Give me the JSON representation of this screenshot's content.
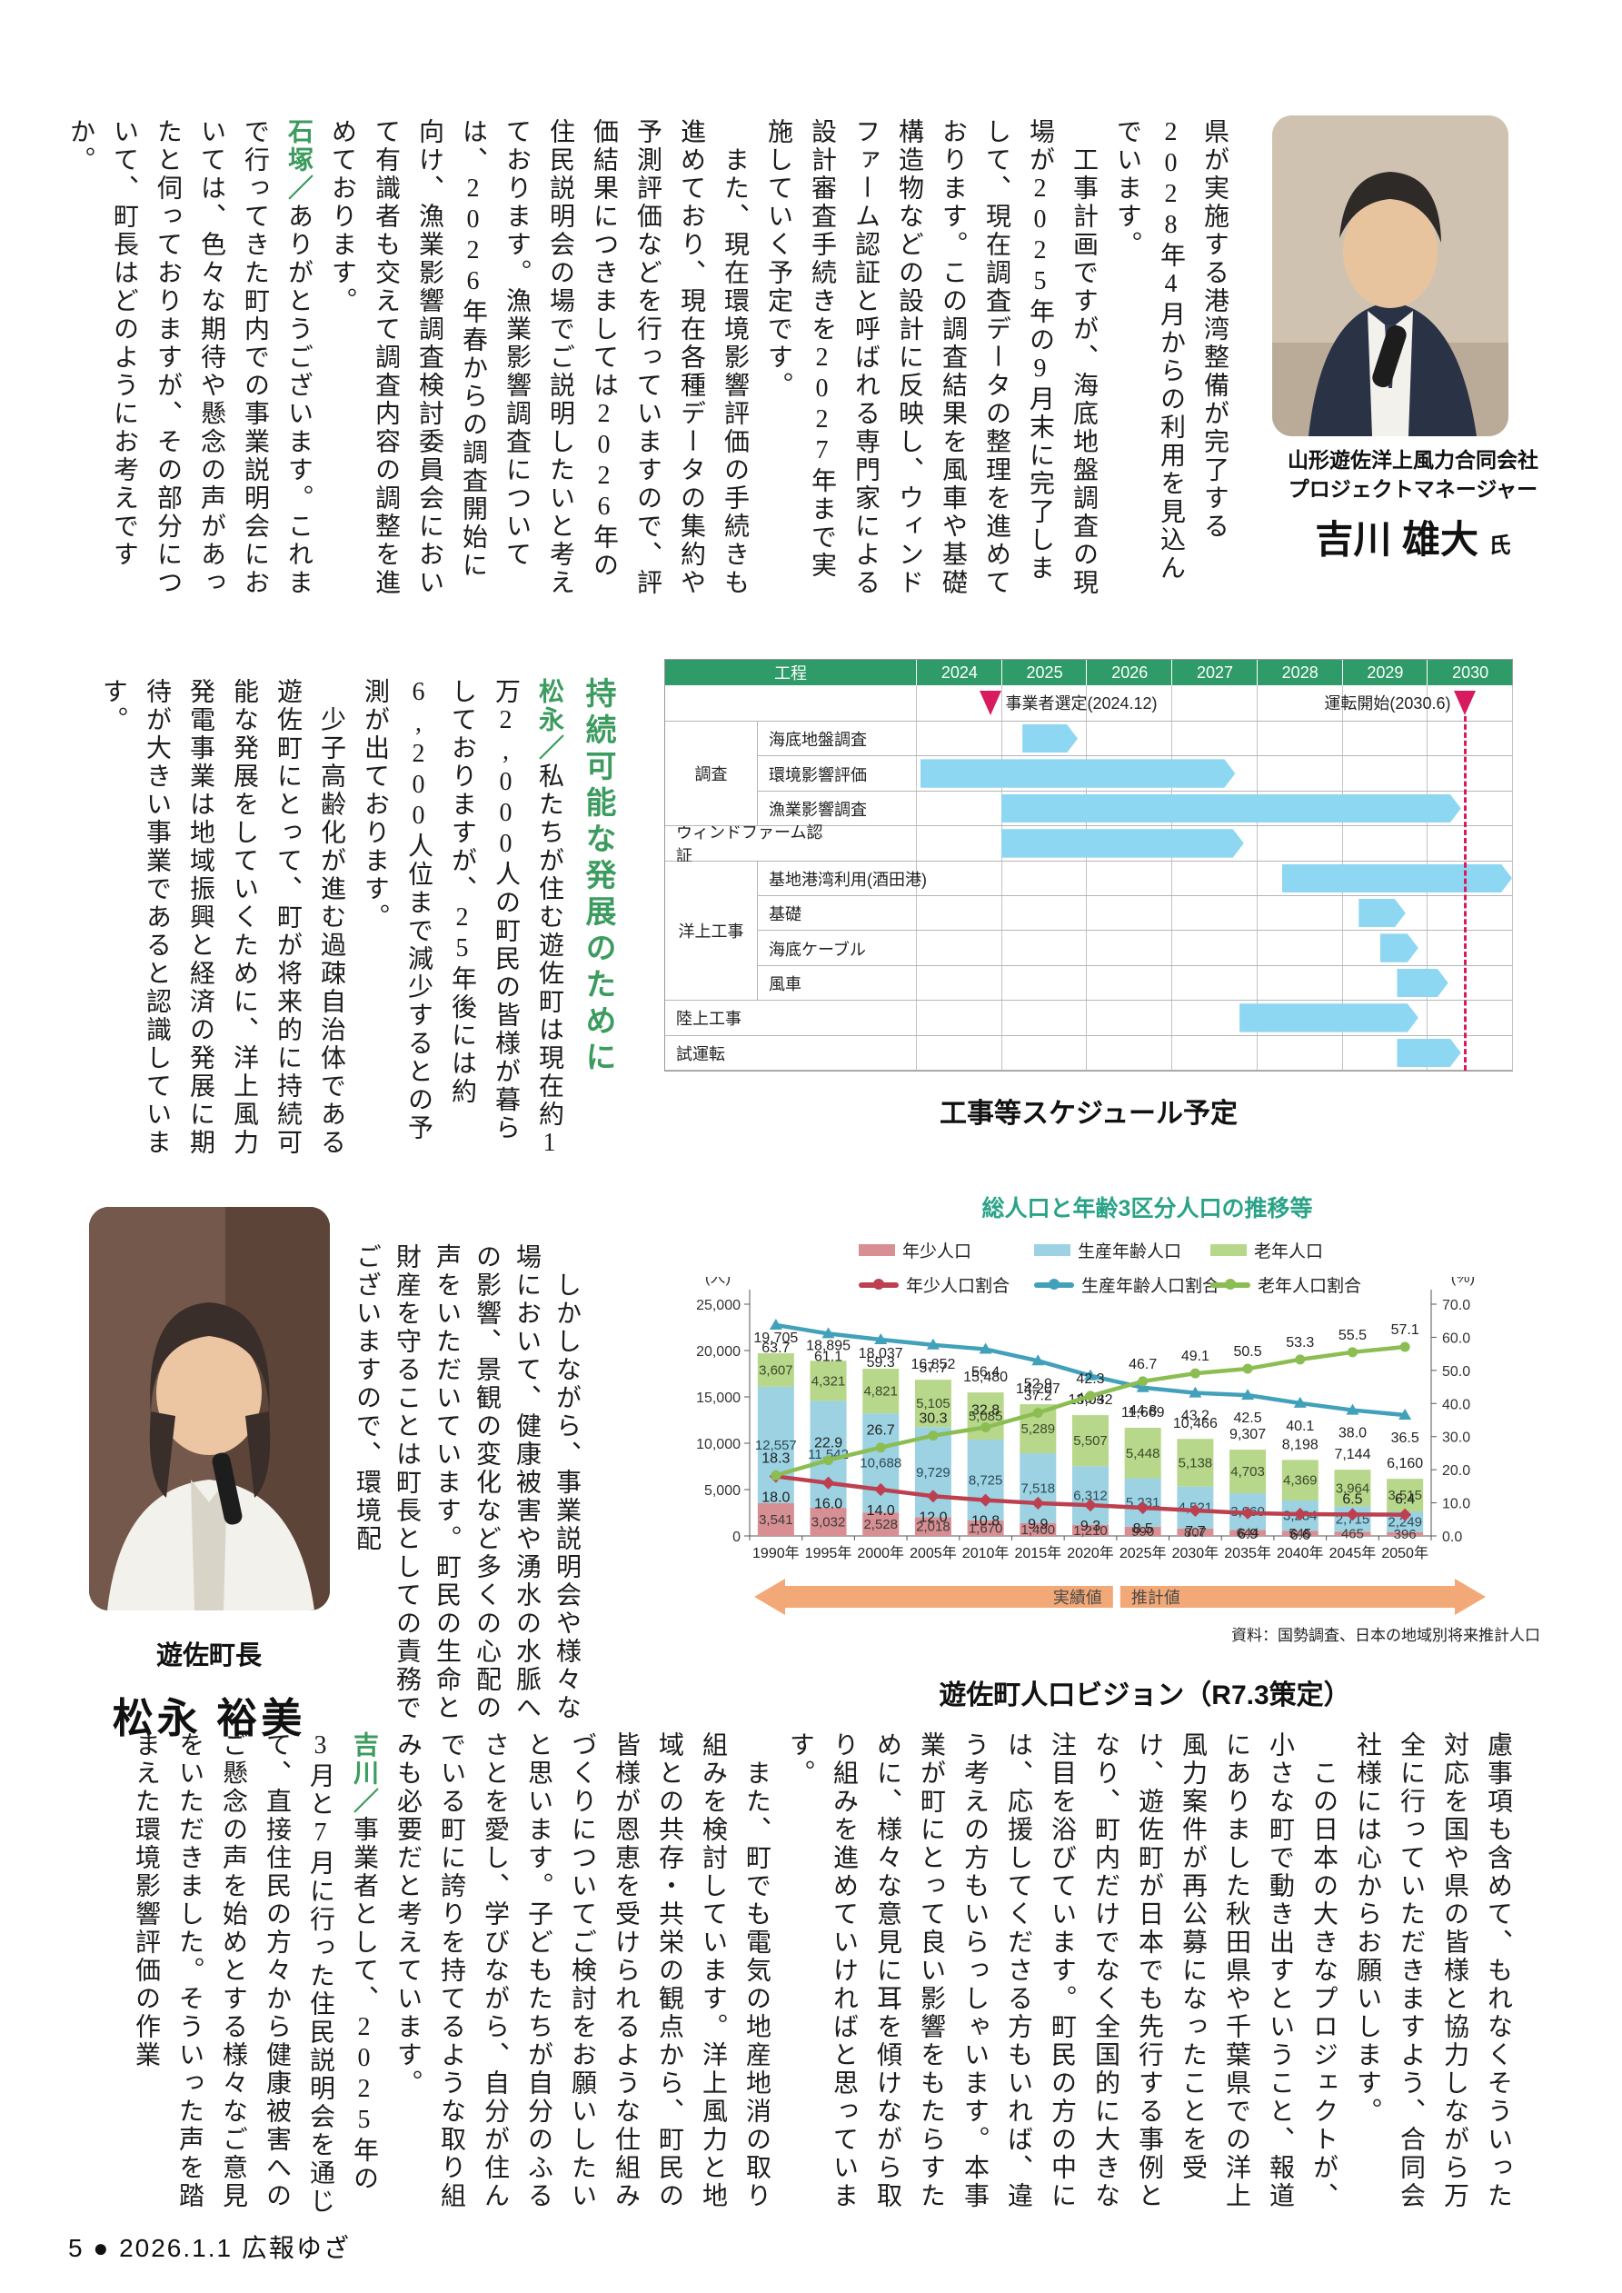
{
  "headings": {
    "sustainable": "持続可能な発展のために"
  },
  "blocks": {
    "top": [
      {
        "text": "県が実施する港湾整備が完了する2028年4月からの利用を見込んでいます。"
      },
      {
        "text": "　工事計画ですが、海底地盤調査の現場が2025年の9月末に完了しまして、現在調査データの整理を進めております。この調査結果を風車や基礎構造物などの設計に反映し、ウィンドファーム認証と呼ばれる専門家による設計審査手続きを2027年まで実施していく予定です。"
      },
      {
        "text": "　また、現在環境影響評価の手続きも進めており、現在各種データの集約や予測評価などを行っていますので、評価結果につきましては2026年の住民説明会の場でご説明したいと考えております。漁業影響調査については、2026年春からの調査開始に向け、漁業影響調査検討委員会において有識者も交えて調査内容の調整を進めております。"
      },
      {
        "lead": "石塚／",
        "text": "ありがとうございます。これまで行ってきた町内での事業説明会においては、色々な期待や懸念の声があったと伺っておりますが、その部分について、町長はどのようにお考えですか。"
      }
    ],
    "middle": [
      {
        "lead": "松永／",
        "text": "私たちが住む遊佐町は現在約1万2,000人の町民の皆様が暮らしておりますが、25年後には約6,200人位まで減少するとの予測が出ております。"
      },
      {
        "text": "　少子高齢化が進む過疎自治体である遊佐町にとって、町が将来的に持続可能な発展をしていくために、洋上風力発電事業は地域振興と経済の発展に期待が大きい事業であると認識しています。"
      }
    ],
    "side": [
      {
        "text": "　しかしながら、事業説明会や様々な場において、健康被害や湧水の水脈への影響、景観の変化など多くの心配の声をいただいています。町民の生命と財産を守ることは町長としての責務でございますので、環境配"
      }
    ],
    "bottom": [
      {
        "text": "慮事項も含めて、もれなくそういった対応を国や県の皆様と協力しながら万全に行っていただきますよう、合同会社様には心からお願いします。"
      },
      {
        "text": "　この日本の大きなプロジェクトが、小さな町で動き出すということ、報道にありました秋田県や千葉県での洋上風力案件が再公募になったことを受け、遊佐町が日本でも先行する事例となり、町内だけでなく全国的に大きな注目を浴びています。町民の方の中には、応援してくださる方もいれば、違う考えの方もいらっしゃいます。本事業が町にとって良い影響をもたらすために、様々な意見に耳を傾けながら取り組みを進めていければと思っています。"
      },
      {
        "text": "　また、町でも電気の地産地消の取り組みを検討しています。洋上風力と地域との共存・共栄の観点から、町民の皆様が恩恵を受けられるような仕組みづくりについてご検討をお願いしたいと思います。子どもたちが自分のふるさとを愛し、学びながら、自分が住んでいる町に誇りを持てるような取り組みも必要だと考えています。"
      },
      {
        "lead": "吉川／",
        "text": "事業者として、2025年の3月と7月に行った住民説明会を通じて、直接住民の方々から健康被害へのご懸念の声を始めとする様々なご意見をいただきました。そういった声を踏まえた環境影響評価の作業"
      }
    ]
  },
  "photos": {
    "yoshikawa": {
      "org": "山形遊佐洋上風力合同会社",
      "role": "プロジェクトマネージャー",
      "name": "吉川 雄大",
      "honorific": "氏"
    },
    "matsunaga": {
      "role": "遊佐町長",
      "name": "松永 裕美"
    }
  },
  "chart_data": [
    {
      "id": "construction-schedule",
      "type": "bar",
      "variant": "gantt",
      "caption": "工事等スケジュール予定",
      "col_header": "工程",
      "years": [
        "2024",
        "2025",
        "2026",
        "2027",
        "2028",
        "2029",
        "2030"
      ],
      "year_range": [
        2024,
        2031
      ],
      "bar_color": "#8ed7f2",
      "header_color": "#2f9b68",
      "milestone_color": "#d81a5e",
      "milestones": [
        {
          "label": "事業者選定(2024.12)",
          "year": 2024.88,
          "side": "right",
          "dashed": false
        },
        {
          "label": "運転開始(2030.6)",
          "year": 2030.45,
          "side": "left",
          "dashed": true
        }
      ],
      "groups": [
        {
          "label": "調査",
          "from": 0,
          "to": 2
        },
        {
          "label": "洋上工事",
          "from": 4,
          "to": 7
        }
      ],
      "rows": [
        {
          "label": "海底地盤調査",
          "start": 2025.25,
          "end": 2025.9
        },
        {
          "label": "環境影響評価",
          "start": 2024.05,
          "end": 2027.75
        },
        {
          "label": "漁業影響調査",
          "start": 2025.0,
          "end": 2030.4
        },
        {
          "label": "ウィンドファーム認証",
          "start": 2025.0,
          "end": 2027.85,
          "full": true
        },
        {
          "label": "基地港湾利用(酒田港)",
          "start": 2028.3,
          "end": 2031.0
        },
        {
          "label": "基礎",
          "start": 2029.2,
          "end": 2029.75
        },
        {
          "label": "海底ケーブル",
          "start": 2029.45,
          "end": 2029.9
        },
        {
          "label": "風車",
          "start": 2029.65,
          "end": 2030.25
        },
        {
          "label": "陸上工事",
          "start": 2027.8,
          "end": 2029.9,
          "full": true
        },
        {
          "label": "試運転",
          "start": 2029.65,
          "end": 2030.4,
          "full": true
        }
      ]
    },
    {
      "id": "population-vision",
      "type": "bar",
      "variant": "stacked-bar-line-combo",
      "title": "総人口と年齢3区分人口の推移等",
      "caption": "遊佐町人口ビジョン（R7.3策定）",
      "categories": [
        "1990年",
        "1995年",
        "2000年",
        "2005年",
        "2010年",
        "2015年",
        "2020年",
        "2025年",
        "2030年",
        "2035年",
        "2040年",
        "2045年",
        "2050年"
      ],
      "totals": [
        19705,
        18895,
        18037,
        16852,
        15480,
        14207,
        13032,
        11669,
        10466,
        9307,
        8198,
        7144,
        6160
      ],
      "bar_series": [
        {
          "name": "年少人口",
          "color": "#d78f93",
          "values": [
            3541,
            3032,
            2528,
            2018,
            1670,
            1400,
            1210,
            990,
            807,
            644,
            545,
            465,
            396
          ]
        },
        {
          "name": "生産年齢人口",
          "color": "#9cd2e2",
          "values": [
            12557,
            11542,
            10688,
            9729,
            8725,
            7518,
            6312,
            5231,
            4521,
            3960,
            3284,
            2715,
            2249
          ]
        },
        {
          "name": "老年人口",
          "color": "#b7d78a",
          "values": [
            3607,
            4321,
            4821,
            5105,
            5085,
            5289,
            5507,
            5448,
            5138,
            4703,
            4369,
            3964,
            3515
          ]
        }
      ],
      "line_series": [
        {
          "name": "年少人口割合",
          "color": "#bd4050",
          "marker": "diamond",
          "values": [
            18.0,
            16.0,
            14.0,
            12.0,
            10.8,
            9.9,
            9.3,
            8.5,
            7.7,
            6.9,
            6.6,
            6.5,
            6.4
          ]
        },
        {
          "name": "生産年齢人口割合",
          "color": "#41a0ba",
          "marker": "triangle",
          "values": [
            63.7,
            61.1,
            59.3,
            57.7,
            56.4,
            52.9,
            48.4,
            44.8,
            43.2,
            42.5,
            40.1,
            38.0,
            36.5
          ]
        },
        {
          "name": "老年人口割合",
          "color": "#8cbd52",
          "marker": "circle",
          "values": [
            18.3,
            22.9,
            26.7,
            30.3,
            32.8,
            37.2,
            42.3,
            46.7,
            49.1,
            50.5,
            53.3,
            55.5,
            57.1
          ]
        }
      ],
      "left_axis": {
        "label": "(人)",
        "max": 25000,
        "step": 5000
      },
      "right_axis": {
        "label": "(%)",
        "max": 70,
        "step": 10
      },
      "annotations": {
        "actual_label": "実績値",
        "projected_label": "推計値",
        "split_after_index": 6,
        "arrow_color": "#f3a977",
        "source": "資料：国勢調査、日本の地域別将来推計人口"
      },
      "legend_position": "top",
      "grid": false
    }
  ],
  "footer": {
    "page_number": "5",
    "bullet": "●",
    "date": "2026.1.1",
    "publication": "広報ゆざ"
  }
}
